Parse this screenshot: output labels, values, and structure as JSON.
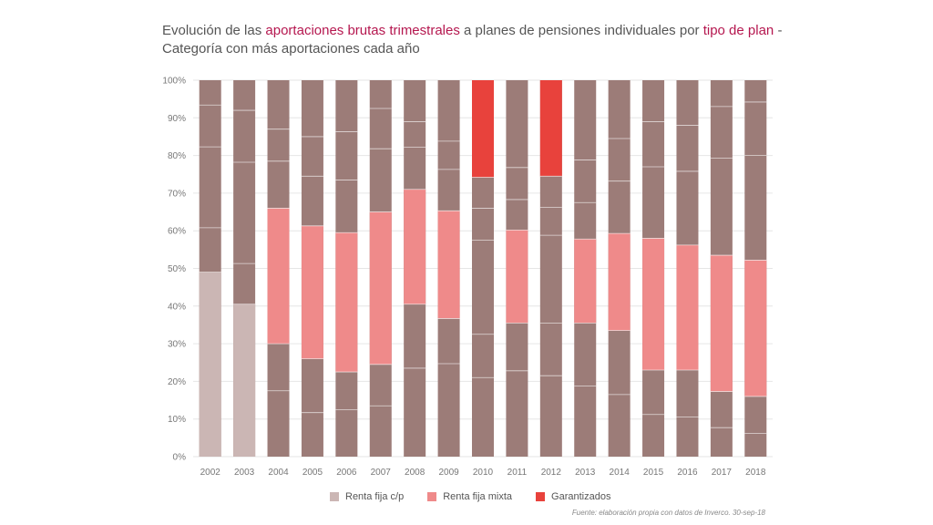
{
  "title": {
    "part1": "Evolución de las ",
    "highlight1": "aportaciones brutas trimestrales",
    "part2": " a planes de pensiones individuales por ",
    "highlight2": "tipo de plan",
    "part3": " - ",
    "line2": "Categoría con más aportaciones cada año"
  },
  "legend": {
    "items": [
      {
        "label": "Renta fija c/p",
        "color": "#cbb6b4"
      },
      {
        "label": "Renta fija mixta",
        "color": "#ef8a8a"
      },
      {
        "label": "Garantizados",
        "color": "#e8423c"
      }
    ]
  },
  "source": "Fuente: elaboración propia con datos de Inverco. 30-sep-18",
  "colors": {
    "other": "#9c7c78",
    "divider": "#ffffff",
    "grid": "#e6e6e6"
  },
  "chart_data": {
    "type": "bar",
    "stacked": true,
    "normalized": true,
    "title": "Evolución de las aportaciones brutas trimestrales a planes de pensiones individuales por tipo de plan - Categoría con más aportaciones cada año",
    "xlabel": "",
    "ylabel": "",
    "ylim": [
      0,
      100
    ],
    "yticks": [
      "0%",
      "10%",
      "20%",
      "30%",
      "40%",
      "50%",
      "60%",
      "70%",
      "80%",
      "90%",
      "100%"
    ],
    "categories": [
      "2002",
      "2003",
      "2004",
      "2005",
      "2006",
      "2007",
      "2008",
      "2009",
      "2010",
      "2011",
      "2012",
      "2013",
      "2014",
      "2015",
      "2016",
      "2017",
      "2018"
    ],
    "bars": [
      {
        "year": "2002",
        "highlight": "Renta fija c/p",
        "low": 0,
        "high": 49,
        "dividers": [
          60.8,
          82.3,
          93.4
        ]
      },
      {
        "year": "2003",
        "highlight": "Renta fija c/p",
        "low": 0,
        "high": 40.5,
        "dividers": [
          51.3,
          78.2,
          92
        ]
      },
      {
        "year": "2004",
        "highlight": "Renta fija mixta",
        "low": 30,
        "high": 66,
        "dividers": [
          17.5,
          78.5,
          87
        ]
      },
      {
        "year": "2005",
        "highlight": "Renta fija mixta",
        "low": 26,
        "high": 61.3,
        "dividers": [
          11.7,
          74.5,
          85
        ]
      },
      {
        "year": "2006",
        "highlight": "Renta fija mixta",
        "low": 22.5,
        "high": 59.5,
        "dividers": [
          12.5,
          73.5,
          86.3
        ]
      },
      {
        "year": "2007",
        "highlight": "Renta fija mixta",
        "low": 24.5,
        "high": 65,
        "dividers": [
          13.5,
          81.8,
          92.5
        ]
      },
      {
        "year": "2008",
        "highlight": "Renta fija mixta",
        "low": 40.5,
        "high": 71,
        "dividers": [
          23.5,
          82.2,
          89
        ]
      },
      {
        "year": "2009",
        "highlight": "Renta fija mixta",
        "low": 36.7,
        "high": 65.3,
        "dividers": [
          24.7,
          76.3,
          83.8
        ]
      },
      {
        "year": "2010",
        "highlight": "Garantizados",
        "low": 74.2,
        "high": 100,
        "dividers": [
          21,
          32.5,
          57.5,
          66
        ]
      },
      {
        "year": "2011",
        "highlight": "Renta fija mixta",
        "low": 35.5,
        "high": 60.2,
        "dividers": [
          22.8,
          68.3,
          76.8
        ]
      },
      {
        "year": "2012",
        "highlight": "Garantizados",
        "low": 74.5,
        "high": 100,
        "dividers": [
          21.5,
          35.5,
          58.8,
          66.2
        ]
      },
      {
        "year": "2013",
        "highlight": "Renta fija mixta",
        "low": 35.5,
        "high": 57.8,
        "dividers": [
          18.8,
          67.5,
          78.8
        ]
      },
      {
        "year": "2014",
        "highlight": "Renta fija mixta",
        "low": 33.5,
        "high": 59.3,
        "dividers": [
          16.5,
          73.2,
          84.5
        ]
      },
      {
        "year": "2015",
        "highlight": "Renta fija mixta",
        "low": 23,
        "high": 58,
        "dividers": [
          11.2,
          77,
          89
        ]
      },
      {
        "year": "2016",
        "highlight": "Renta fija mixta",
        "low": 23,
        "high": 56.2,
        "dividers": [
          10.5,
          75.8,
          88
        ]
      },
      {
        "year": "2017",
        "highlight": "Renta fija mixta",
        "low": 17.3,
        "high": 53.5,
        "dividers": [
          7.7,
          79.3,
          93
        ]
      },
      {
        "year": "2018",
        "highlight": "Renta fija mixta",
        "low": 16,
        "high": 52.2,
        "dividers": [
          6.2,
          80,
          94.2
        ]
      }
    ]
  }
}
